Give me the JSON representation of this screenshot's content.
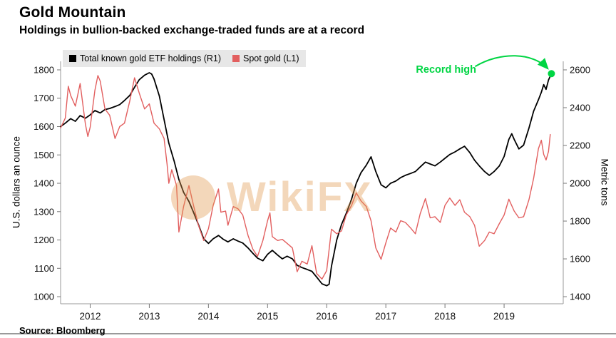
{
  "chart_data": {
    "type": "line",
    "title": "Gold Mountain",
    "subtitle": "Holdings in bullion-backed exchange-traded funds are at a record",
    "source": "Source: Bloomberg",
    "watermark": "WikiFX",
    "watermark_color": "#e2974b",
    "annotation": {
      "text": "Record high",
      "color": "#00d543"
    },
    "x_range": [
      2011.5,
      2020.0
    ],
    "x_ticks": [
      2012,
      2013,
      2014,
      2015,
      2016,
      2017,
      2018,
      2019
    ],
    "left_axis": {
      "label": "U.S. dollars an ounce",
      "ticks": [
        1000,
        1100,
        1200,
        1300,
        1400,
        1500,
        1600,
        1700,
        1800
      ],
      "range": [
        975,
        1810
      ]
    },
    "right_axis": {
      "label": "Metric tons",
      "ticks": [
        1400,
        1600,
        1800,
        2000,
        2200,
        2400,
        2600
      ],
      "range": [
        1362.5,
        2615
      ]
    },
    "legend": [
      {
        "label": "Total known gold ETF holdings (R1)",
        "color": "#000000"
      },
      {
        "label": "Spot gold (L1)",
        "color": "#e25f5f"
      }
    ],
    "series": [
      {
        "name": "Total known gold ETF holdings (R1)",
        "axis": "right",
        "color": "#000000",
        "points": [
          [
            2011.5,
            2300
          ],
          [
            2011.58,
            2318
          ],
          [
            2011.67,
            2342
          ],
          [
            2011.75,
            2328
          ],
          [
            2011.83,
            2358
          ],
          [
            2011.92,
            2344
          ],
          [
            2012.0,
            2362
          ],
          [
            2012.08,
            2385
          ],
          [
            2012.17,
            2372
          ],
          [
            2012.25,
            2390
          ],
          [
            2012.33,
            2396
          ],
          [
            2012.42,
            2406
          ],
          [
            2012.5,
            2416
          ],
          [
            2012.58,
            2438
          ],
          [
            2012.67,
            2465
          ],
          [
            2012.75,
            2508
          ],
          [
            2012.83,
            2548
          ],
          [
            2012.92,
            2572
          ],
          [
            2013.0,
            2585
          ],
          [
            2013.04,
            2578
          ],
          [
            2013.08,
            2552
          ],
          [
            2013.17,
            2462
          ],
          [
            2013.25,
            2338
          ],
          [
            2013.33,
            2212
          ],
          [
            2013.42,
            2118
          ],
          [
            2013.5,
            2020
          ],
          [
            2013.58,
            1952
          ],
          [
            2013.67,
            1904
          ],
          [
            2013.75,
            1845
          ],
          [
            2013.83,
            1782
          ],
          [
            2013.92,
            1706
          ],
          [
            2014.0,
            1682
          ],
          [
            2014.08,
            1706
          ],
          [
            2014.17,
            1724
          ],
          [
            2014.25,
            1704
          ],
          [
            2014.33,
            1690
          ],
          [
            2014.42,
            1706
          ],
          [
            2014.5,
            1694
          ],
          [
            2014.58,
            1684
          ],
          [
            2014.67,
            1658
          ],
          [
            2014.75,
            1630
          ],
          [
            2014.83,
            1604
          ],
          [
            2014.92,
            1590
          ],
          [
            2015.0,
            1624
          ],
          [
            2015.08,
            1645
          ],
          [
            2015.17,
            1620
          ],
          [
            2015.25,
            1600
          ],
          [
            2015.33,
            1614
          ],
          [
            2015.42,
            1600
          ],
          [
            2015.5,
            1566
          ],
          [
            2015.58,
            1554
          ],
          [
            2015.67,
            1544
          ],
          [
            2015.75,
            1534
          ],
          [
            2015.83,
            1504
          ],
          [
            2015.92,
            1468
          ],
          [
            2016.0,
            1458
          ],
          [
            2016.04,
            1466
          ],
          [
            2016.08,
            1560
          ],
          [
            2016.17,
            1700
          ],
          [
            2016.25,
            1782
          ],
          [
            2016.33,
            1840
          ],
          [
            2016.42,
            1916
          ],
          [
            2016.5,
            2000
          ],
          [
            2016.58,
            2056
          ],
          [
            2016.67,
            2096
          ],
          [
            2016.75,
            2140
          ],
          [
            2016.83,
            2062
          ],
          [
            2016.92,
            1992
          ],
          [
            2017.0,
            1976
          ],
          [
            2017.08,
            2000
          ],
          [
            2017.17,
            2012
          ],
          [
            2017.25,
            2030
          ],
          [
            2017.33,
            2042
          ],
          [
            2017.42,
            2052
          ],
          [
            2017.5,
            2062
          ],
          [
            2017.58,
            2086
          ],
          [
            2017.67,
            2112
          ],
          [
            2017.75,
            2102
          ],
          [
            2017.83,
            2092
          ],
          [
            2017.92,
            2112
          ],
          [
            2018.0,
            2132
          ],
          [
            2018.08,
            2152
          ],
          [
            2018.17,
            2166
          ],
          [
            2018.25,
            2182
          ],
          [
            2018.33,
            2196
          ],
          [
            2018.42,
            2162
          ],
          [
            2018.5,
            2122
          ],
          [
            2018.58,
            2092
          ],
          [
            2018.67,
            2062
          ],
          [
            2018.75,
            2042
          ],
          [
            2018.83,
            2062
          ],
          [
            2018.92,
            2092
          ],
          [
            2019.0,
            2142
          ],
          [
            2019.08,
            2232
          ],
          [
            2019.13,
            2262
          ],
          [
            2019.17,
            2232
          ],
          [
            2019.25,
            2182
          ],
          [
            2019.33,
            2202
          ],
          [
            2019.42,
            2292
          ],
          [
            2019.5,
            2382
          ],
          [
            2019.58,
            2442
          ],
          [
            2019.63,
            2482
          ],
          [
            2019.67,
            2522
          ],
          [
            2019.71,
            2497
          ],
          [
            2019.75,
            2546
          ],
          [
            2019.8,
            2580
          ]
        ]
      },
      {
        "name": "Spot gold (L1)",
        "axis": "left",
        "color": "#e25f5f",
        "points": [
          [
            2011.5,
            1595
          ],
          [
            2011.58,
            1630
          ],
          [
            2011.63,
            1742
          ],
          [
            2011.67,
            1710
          ],
          [
            2011.75,
            1672
          ],
          [
            2011.83,
            1752
          ],
          [
            2011.92,
            1608
          ],
          [
            2011.96,
            1565
          ],
          [
            2012.0,
            1598
          ],
          [
            2012.08,
            1728
          ],
          [
            2012.13,
            1780
          ],
          [
            2012.17,
            1760
          ],
          [
            2012.25,
            1662
          ],
          [
            2012.33,
            1640
          ],
          [
            2012.42,
            1558
          ],
          [
            2012.5,
            1600
          ],
          [
            2012.58,
            1612
          ],
          [
            2012.67,
            1690
          ],
          [
            2012.75,
            1772
          ],
          [
            2012.83,
            1718
          ],
          [
            2012.92,
            1662
          ],
          [
            2013.0,
            1680
          ],
          [
            2013.08,
            1612
          ],
          [
            2013.17,
            1592
          ],
          [
            2013.25,
            1558
          ],
          [
            2013.3,
            1468
          ],
          [
            2013.33,
            1400
          ],
          [
            2013.38,
            1448
          ],
          [
            2013.46,
            1392
          ],
          [
            2013.5,
            1228
          ],
          [
            2013.58,
            1318
          ],
          [
            2013.67,
            1392
          ],
          [
            2013.75,
            1320
          ],
          [
            2013.83,
            1252
          ],
          [
            2013.92,
            1198
          ],
          [
            2014.0,
            1240
          ],
          [
            2014.08,
            1322
          ],
          [
            2014.17,
            1380
          ],
          [
            2014.21,
            1298
          ],
          [
            2014.29,
            1302
          ],
          [
            2014.33,
            1252
          ],
          [
            2014.42,
            1318
          ],
          [
            2014.5,
            1310
          ],
          [
            2014.58,
            1288
          ],
          [
            2014.67,
            1216
          ],
          [
            2014.75,
            1168
          ],
          [
            2014.83,
            1142
          ],
          [
            2014.92,
            1198
          ],
          [
            2015.0,
            1268
          ],
          [
            2015.04,
            1296
          ],
          [
            2015.08,
            1212
          ],
          [
            2015.17,
            1198
          ],
          [
            2015.25,
            1202
          ],
          [
            2015.33,
            1188
          ],
          [
            2015.42,
            1172
          ],
          [
            2015.5,
            1088
          ],
          [
            2015.58,
            1125
          ],
          [
            2015.67,
            1115
          ],
          [
            2015.75,
            1180
          ],
          [
            2015.83,
            1082
          ],
          [
            2015.92,
            1062
          ],
          [
            2016.0,
            1092
          ],
          [
            2016.08,
            1238
          ],
          [
            2016.17,
            1222
          ],
          [
            2016.25,
            1232
          ],
          [
            2016.33,
            1288
          ],
          [
            2016.42,
            1322
          ],
          [
            2016.5,
            1366
          ],
          [
            2016.58,
            1338
          ],
          [
            2016.67,
            1318
          ],
          [
            2016.75,
            1268
          ],
          [
            2016.83,
            1172
          ],
          [
            2016.92,
            1132
          ],
          [
            2017.0,
            1190
          ],
          [
            2017.08,
            1242
          ],
          [
            2017.17,
            1228
          ],
          [
            2017.25,
            1268
          ],
          [
            2017.33,
            1262
          ],
          [
            2017.42,
            1242
          ],
          [
            2017.5,
            1222
          ],
          [
            2017.58,
            1292
          ],
          [
            2017.67,
            1346
          ],
          [
            2017.75,
            1278
          ],
          [
            2017.83,
            1282
          ],
          [
            2017.92,
            1262
          ],
          [
            2018.0,
            1322
          ],
          [
            2018.08,
            1348
          ],
          [
            2018.17,
            1322
          ],
          [
            2018.25,
            1342
          ],
          [
            2018.33,
            1298
          ],
          [
            2018.42,
            1282
          ],
          [
            2018.5,
            1252
          ],
          [
            2018.58,
            1178
          ],
          [
            2018.67,
            1198
          ],
          [
            2018.75,
            1228
          ],
          [
            2018.83,
            1222
          ],
          [
            2018.92,
            1258
          ],
          [
            2019.0,
            1288
          ],
          [
            2019.08,
            1344
          ],
          [
            2019.17,
            1302
          ],
          [
            2019.25,
            1278
          ],
          [
            2019.33,
            1282
          ],
          [
            2019.42,
            1342
          ],
          [
            2019.5,
            1418
          ],
          [
            2019.58,
            1522
          ],
          [
            2019.63,
            1552
          ],
          [
            2019.67,
            1502
          ],
          [
            2019.71,
            1482
          ],
          [
            2019.75,
            1512
          ],
          [
            2019.78,
            1572
          ]
        ]
      }
    ]
  }
}
